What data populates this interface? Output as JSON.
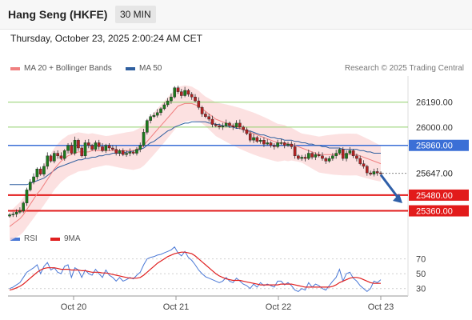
{
  "header": {
    "title": "Hang Seng (HKFE)",
    "interval": "30 MIN",
    "datetime": "Thursday, October 23, 2025 2:00:24 AM CET"
  },
  "legend": {
    "ma20": {
      "label": "MA 20 + Bollinger Bands",
      "color": "#f08080"
    },
    "ma50": {
      "label": "MA 50",
      "color": "#2f5f9f"
    },
    "rsi": {
      "label": "RSI",
      "color": "#4a78d6"
    },
    "rsi_ma": {
      "label": "9MA",
      "color": "#e02020"
    }
  },
  "credit": "Research © 2025 Trading Central",
  "chart_data": [
    {
      "type": "candlestick",
      "ylim": [
        25290,
        26390
      ],
      "x_ticks": [
        "Oct 20",
        "Oct 21",
        "Oct 22",
        "Oct 23"
      ],
      "levels": [
        {
          "value": 26190,
          "label": "26190.00",
          "kind": "resistance"
        },
        {
          "value": 26000,
          "label": "26000.00",
          "kind": "resistance"
        },
        {
          "value": 25860,
          "label": "25860.00",
          "kind": "pivot"
        },
        {
          "value": 25647,
          "label": "25647.00",
          "kind": "last"
        },
        {
          "value": 25480,
          "label": "25480.00",
          "kind": "support"
        },
        {
          "value": 25360,
          "label": "25360.00",
          "kind": "support"
        }
      ],
      "close": [
        25330,
        25335,
        25350,
        25360,
        25420,
        25520,
        25580,
        25620,
        25680,
        25640,
        25700,
        25780,
        25740,
        25800,
        25780,
        25760,
        25820,
        25860,
        25800,
        25900,
        25840,
        25780,
        25880,
        25860,
        25830,
        25880,
        25850,
        25820,
        25860,
        25840,
        25830,
        25800,
        25820,
        25790,
        25800,
        25810,
        25800,
        25830,
        25860,
        25960,
        26050,
        26080,
        26090,
        26110,
        26140,
        26170,
        26200,
        26230,
        26300,
        26270,
        26240,
        26280,
        26250,
        26230,
        26200,
        26150,
        26100,
        26080,
        26060,
        26020,
        26010,
        26000,
        26010,
        26030,
        26010,
        26000,
        26030,
        26000,
        25980,
        25950,
        25900,
        25920,
        25890,
        25900,
        25870,
        25880,
        25860,
        25850,
        25880,
        25880,
        25860,
        25870,
        25850,
        25780,
        25760,
        25770,
        25760,
        25800,
        25770,
        25790,
        25780,
        25760,
        25740,
        25760,
        25780,
        25800,
        25830,
        25760,
        25800,
        25820,
        25780,
        25760,
        25720,
        25700,
        25650,
        25640,
        25660,
        25650,
        25647
      ],
      "ma20": [
        25240,
        25260,
        25280,
        25300,
        25330,
        25370,
        25410,
        25450,
        25490,
        25520,
        25560,
        25600,
        25640,
        25680,
        25710,
        25740,
        25760,
        25780,
        25790,
        25800,
        25810,
        25810,
        25810,
        25810,
        25820,
        25820,
        25820,
        25820,
        25820,
        25820,
        25820,
        25820,
        25820,
        25820,
        25820,
        25820,
        25820,
        25830,
        25840,
        25860,
        25890,
        25920,
        25950,
        25980,
        26010,
        26040,
        26070,
        26100,
        26130,
        26160,
        26170,
        26180,
        26180,
        26180,
        26170,
        26160,
        26140,
        26120,
        26100,
        26080,
        26060,
        26050,
        26040,
        26030,
        26020,
        26010,
        26000,
        25990,
        25980,
        25970,
        25960,
        25950,
        25940,
        25930,
        25920,
        25910,
        25900,
        25890,
        25880,
        25880,
        25880,
        25870,
        25870,
        25860,
        25850,
        25840,
        25830,
        25820,
        25810,
        25800,
        25790,
        25790,
        25790,
        25790,
        25790,
        25790,
        25790,
        25790,
        25790,
        25790,
        25790,
        25790,
        25780,
        25770,
        25760,
        25750,
        25740,
        25730,
        25720
      ],
      "ma50": [
        25560,
        25560,
        25560,
        25560,
        25560,
        25560,
        25570,
        25580,
        25590,
        25600,
        25610,
        25630,
        25650,
        25670,
        25690,
        25700,
        25710,
        25720,
        25730,
        25740,
        25750,
        25750,
        25760,
        25760,
        25770,
        25770,
        25780,
        25780,
        25790,
        25790,
        25800,
        25800,
        25800,
        25800,
        25810,
        25810,
        25820,
        25820,
        25830,
        25840,
        25860,
        25880,
        25890,
        25910,
        25930,
        25950,
        25970,
        25980,
        26000,
        26010,
        26020,
        26030,
        26030,
        26040,
        26040,
        26040,
        26040,
        26040,
        26030,
        26030,
        26020,
        26020,
        26010,
        26010,
        26000,
        26000,
        25990,
        25990,
        25980,
        25970,
        25970,
        25960,
        25950,
        25940,
        25940,
        25930,
        25920,
        25920,
        25910,
        25910,
        25900,
        25900,
        25900,
        25890,
        25890,
        25880,
        25880,
        25870,
        25870,
        25860,
        25860,
        25850,
        25850,
        25840,
        25840,
        25840,
        25840,
        25830,
        25830,
        25830,
        25830,
        25830,
        25820,
        25820,
        25810,
        25810,
        25800,
        25800,
        25800
      ],
      "forecast": {
        "from": 25647,
        "to": 25400,
        "direction": "down"
      }
    },
    {
      "type": "line",
      "name_hint": "indicator",
      "ylim": [
        20,
        90
      ],
      "y_ticks": [
        70,
        50,
        30
      ],
      "rsi": [
        30,
        32,
        35,
        38,
        45,
        52,
        55,
        58,
        62,
        50,
        60,
        65,
        55,
        58,
        52,
        50,
        60,
        62,
        45,
        58,
        55,
        45,
        55,
        50,
        48,
        56,
        50,
        45,
        55,
        48,
        45,
        40,
        45,
        40,
        42,
        45,
        43,
        48,
        52,
        62,
        70,
        72,
        73,
        75,
        76,
        78,
        80,
        82,
        86,
        78,
        74,
        80,
        72,
        68,
        62,
        55,
        50,
        46,
        44,
        42,
        40,
        38,
        40,
        45,
        40,
        38,
        44,
        40,
        36,
        34,
        30,
        36,
        32,
        38,
        34,
        36,
        34,
        32,
        40,
        40,
        35,
        38,
        34,
        28,
        26,
        30,
        28,
        38,
        32,
        36,
        34,
        30,
        28,
        34,
        40,
        45,
        56,
        40,
        50,
        52,
        44,
        40,
        34,
        30,
        26,
        30,
        40,
        38,
        42
      ],
      "rsi_ma": [
        28,
        29,
        31,
        33,
        36,
        40,
        44,
        48,
        52,
        55,
        57,
        58,
        58,
        58,
        57,
        56,
        56,
        56,
        55,
        55,
        55,
        54,
        54,
        53,
        52,
        52,
        52,
        51,
        51,
        50,
        49,
        48,
        47,
        46,
        45,
        44,
        44,
        44,
        45,
        48,
        52,
        56,
        60,
        64,
        67,
        70,
        73,
        75,
        77,
        78,
        79,
        79,
        78,
        77,
        74,
        70,
        66,
        62,
        58,
        54,
        50,
        47,
        45,
        43,
        42,
        41,
        41,
        41,
        40,
        39,
        38,
        37,
        36,
        35,
        35,
        35,
        35,
        35,
        35,
        36,
        36,
        36,
        36,
        35,
        34,
        33,
        32,
        32,
        32,
        32,
        32,
        32,
        32,
        32,
        33,
        35,
        38,
        40,
        42,
        44,
        45,
        45,
        44,
        42,
        40,
        38,
        37,
        37,
        37
      ]
    }
  ]
}
